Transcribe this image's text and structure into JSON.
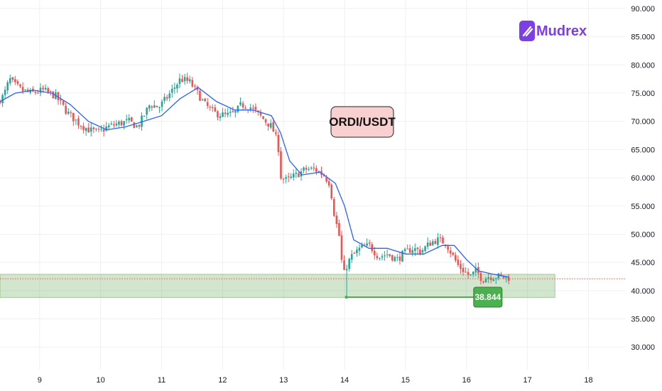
{
  "brand": {
    "logo_text": "Mudrex",
    "logo_icon": "mudrex-logo-icon",
    "logo_color": "#7b3fe4"
  },
  "title_box": {
    "text": "ORDI/USDT",
    "fill": "#f8d0d0",
    "stroke": "#222222"
  },
  "price_label": {
    "text": "38.844",
    "value": 38.844,
    "color": "#4caf50"
  },
  "colors": {
    "up": "#26a69a",
    "down": "#ef5350",
    "ma": "#2962ff",
    "zone": "#4c9a3a",
    "current_price_line": "#ef5350",
    "grid": "#eef0f3"
  },
  "chart_data": {
    "type": "candlestick",
    "title": "ORDI/USDT",
    "xlabel": "",
    "ylabel": "",
    "x_ticks": [
      "9",
      "10",
      "11",
      "12",
      "13",
      "14",
      "15",
      "16",
      "17",
      "18"
    ],
    "y_ticks": [
      "30.000",
      "35.000",
      "40.000",
      "45.000",
      "50.000",
      "55.000",
      "60.000",
      "65.000",
      "70.000",
      "75.000",
      "80.000",
      "85.000",
      "90.000"
    ],
    "xlim": [
      8.35,
      18.6
    ],
    "ylim": [
      26,
      91.5
    ],
    "grid": true,
    "support_zone": {
      "low": 38.8,
      "high": 42.9
    },
    "current_price": 42.1,
    "low_marker": {
      "x_start": 14.03,
      "x_end": 16.35,
      "value": 38.844
    },
    "series": [
      {
        "name": "",
        "kind": "price_path",
        "x": [
          8.35,
          8.45,
          8.55,
          8.62,
          8.75,
          8.9,
          9.1,
          9.3,
          9.5,
          9.7,
          9.85,
          10.0,
          10.15,
          10.3,
          10.5,
          10.65,
          10.75,
          10.85,
          11.0,
          11.15,
          11.35,
          11.5,
          11.6,
          11.75,
          11.9,
          12.1,
          12.25,
          12.35,
          12.5,
          12.65,
          12.75,
          12.85,
          12.95,
          13.0,
          13.1,
          13.25,
          13.4,
          13.55,
          13.7,
          13.8,
          13.88,
          13.95,
          14.02,
          14.08,
          14.15,
          14.3,
          14.45,
          14.6,
          14.75,
          14.9,
          15.0,
          15.15,
          15.3,
          15.45,
          15.55,
          15.7,
          15.8,
          15.9,
          16.0,
          16.1,
          16.2,
          16.3,
          16.4,
          16.5,
          16.6,
          16.7
        ],
        "y": [
          73.5,
          74.5,
          77.5,
          76.5,
          75.5,
          75.0,
          75.5,
          74.5,
          71.5,
          69.5,
          68.5,
          68.0,
          69.0,
          69.5,
          70.0,
          69.0,
          71.0,
          73.0,
          72.5,
          74.5,
          77.5,
          77.0,
          75.5,
          73.0,
          71.5,
          71.0,
          71.5,
          73.0,
          72.5,
          71.0,
          70.0,
          69.0,
          66.0,
          60.0,
          59.5,
          60.5,
          61.5,
          61.5,
          60.5,
          59.0,
          53.0,
          50.0,
          42.5,
          44.5,
          46.0,
          47.5,
          48.0,
          46.0,
          46.5,
          45.5,
          46.5,
          47.5,
          47.0,
          48.5,
          49.0,
          48.5,
          46.5,
          44.5,
          43.5,
          42.5,
          43.5,
          42.0,
          42.5,
          42.5,
          42.5,
          42.3
        ]
      },
      {
        "name": "",
        "kind": "moving_average",
        "x": [
          8.35,
          8.6,
          8.9,
          9.2,
          9.5,
          9.8,
          10.1,
          10.4,
          10.7,
          11.0,
          11.3,
          11.6,
          11.9,
          12.2,
          12.5,
          12.8,
          12.95,
          13.1,
          13.3,
          13.6,
          13.85,
          14.0,
          14.15,
          14.4,
          14.7,
          15.0,
          15.3,
          15.6,
          15.8,
          16.0,
          16.2,
          16.4,
          16.6,
          16.7
        ],
        "y": [
          73.5,
          75.0,
          75.5,
          75.0,
          73.0,
          70.0,
          68.5,
          69.0,
          70.0,
          71.0,
          74.0,
          76.0,
          73.5,
          72.0,
          72.0,
          71.0,
          68.0,
          63.0,
          60.5,
          61.0,
          59.0,
          55.0,
          49.0,
          47.5,
          47.5,
          46.5,
          46.5,
          48.0,
          48.0,
          45.5,
          43.5,
          43.0,
          42.6,
          42.4
        ]
      }
    ]
  }
}
